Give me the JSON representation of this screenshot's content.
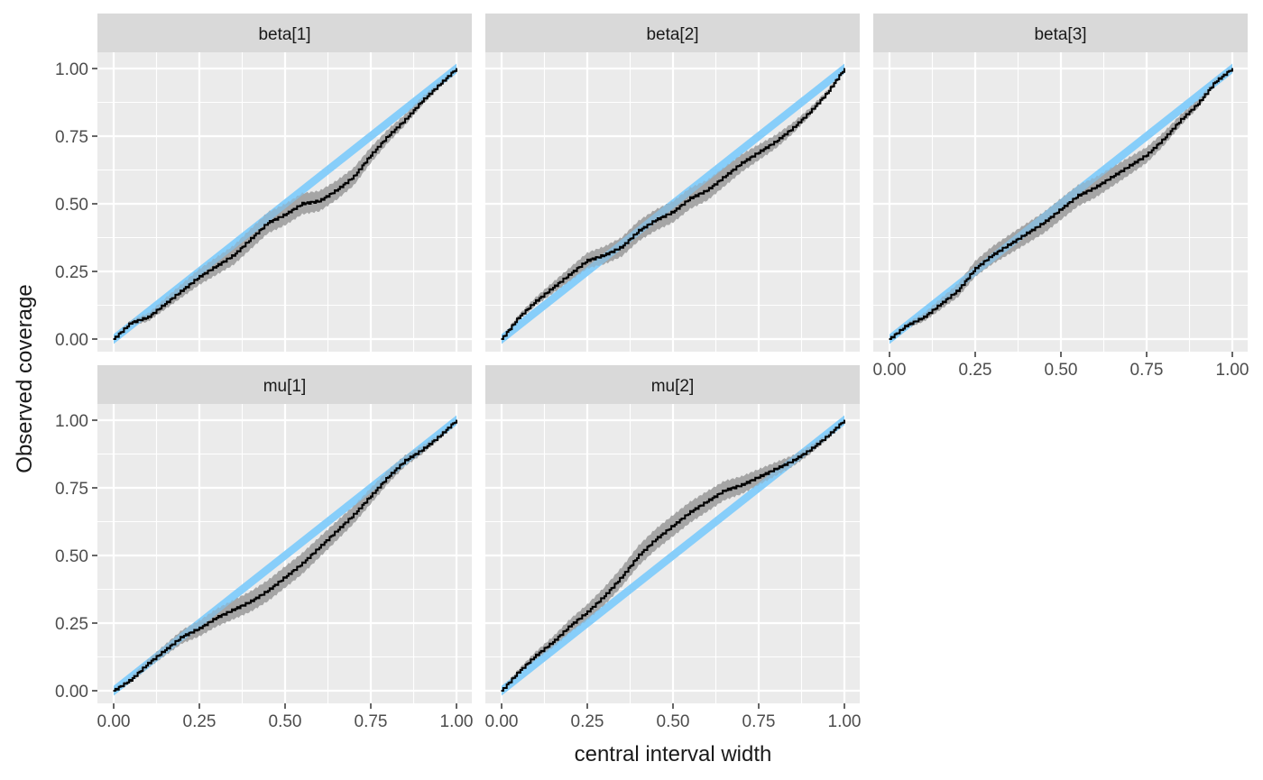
{
  "chart_data": {
    "type": "line",
    "xlabel": "central interval width",
    "ylabel": "Observed coverage",
    "xlim": [
      0,
      1
    ],
    "ylim": [
      0,
      1
    ],
    "x_ticks": [
      "0.00",
      "0.25",
      "0.50",
      "0.75",
      "1.00"
    ],
    "y_ticks": [
      "0.00",
      "0.25",
      "0.50",
      "0.75",
      "1.00"
    ],
    "grid": true,
    "layout": "facet grid, 2 rows x 3 columns",
    "colors": {
      "panel_bg": "#ebebeb",
      "strip_bg": "#d9d9d9",
      "grid": "#ffffff",
      "reference_band": "#87cefa",
      "ci_band": "#999999",
      "observed_line": "#000000",
      "tick_text": "#4d4d4d",
      "title_text": "#1a1a1a"
    },
    "x": [
      0,
      0.05,
      0.1,
      0.15,
      0.2,
      0.25,
      0.3,
      0.35,
      0.4,
      0.45,
      0.5,
      0.55,
      0.6,
      0.65,
      0.7,
      0.75,
      0.8,
      0.85,
      0.9,
      0.95,
      1.0
    ],
    "panels": [
      {
        "strip": "beta[1]",
        "observed": [
          0,
          0.06,
          0.08,
          0.13,
          0.18,
          0.23,
          0.27,
          0.31,
          0.37,
          0.43,
          0.46,
          0.5,
          0.51,
          0.55,
          0.6,
          0.68,
          0.75,
          0.81,
          0.88,
          0.94,
          1.0
        ]
      },
      {
        "strip": "beta[2]",
        "observed": [
          0,
          0.08,
          0.14,
          0.19,
          0.24,
          0.29,
          0.31,
          0.34,
          0.4,
          0.44,
          0.47,
          0.52,
          0.55,
          0.6,
          0.65,
          0.69,
          0.73,
          0.78,
          0.84,
          0.91,
          1.0
        ]
      },
      {
        "strip": "beta[3]",
        "observed": [
          0,
          0.05,
          0.08,
          0.13,
          0.18,
          0.26,
          0.31,
          0.35,
          0.39,
          0.43,
          0.48,
          0.53,
          0.56,
          0.6,
          0.64,
          0.68,
          0.74,
          0.81,
          0.87,
          0.95,
          1.0
        ]
      },
      {
        "strip": "mu[1]",
        "observed": [
          0,
          0.04,
          0.1,
          0.15,
          0.2,
          0.23,
          0.27,
          0.3,
          0.33,
          0.37,
          0.42,
          0.47,
          0.53,
          0.59,
          0.65,
          0.72,
          0.79,
          0.85,
          0.89,
          0.94,
          1.0
        ]
      },
      {
        "strip": "mu[2]",
        "observed": [
          0,
          0.07,
          0.13,
          0.18,
          0.24,
          0.29,
          0.35,
          0.42,
          0.5,
          0.56,
          0.61,
          0.66,
          0.7,
          0.74,
          0.76,
          0.79,
          0.82,
          0.85,
          0.89,
          0.94,
          1.0
        ]
      }
    ],
    "ci_band_halfwidth": 0.035,
    "reference_band_halfwidth": 0.018
  }
}
